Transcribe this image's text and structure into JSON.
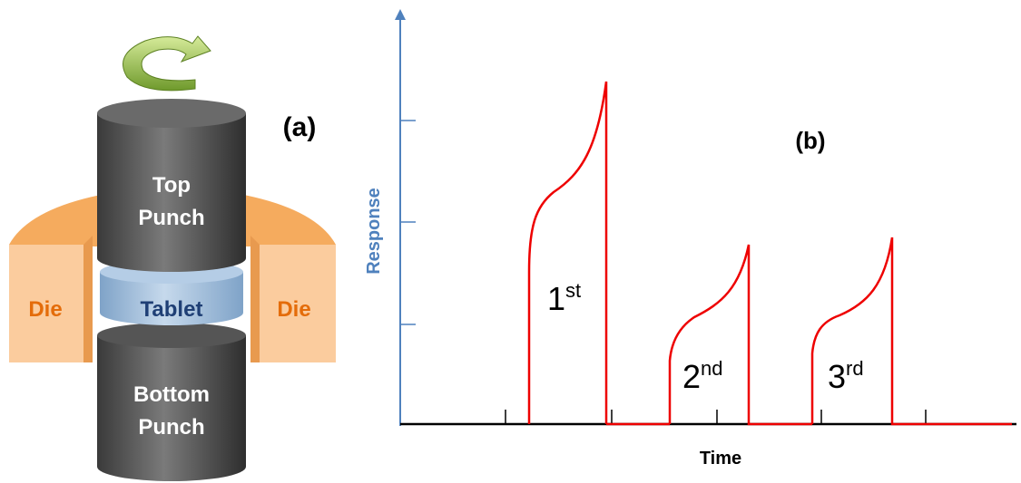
{
  "panel_a": {
    "label": "(a)",
    "top_punch": "Top Punch",
    "tablet": "Tablet",
    "die_left": "Die",
    "die_right": "Die",
    "bottom_punch": "Bottom Punch"
  },
  "panel_b": {
    "label": "(b)",
    "y_axis_label": "Response",
    "x_axis_label": "Time",
    "peaks": [
      {
        "number": "1",
        "suffix": "st"
      },
      {
        "number": "2",
        "suffix": "nd"
      },
      {
        "number": "3",
        "suffix": "rd"
      }
    ]
  }
}
